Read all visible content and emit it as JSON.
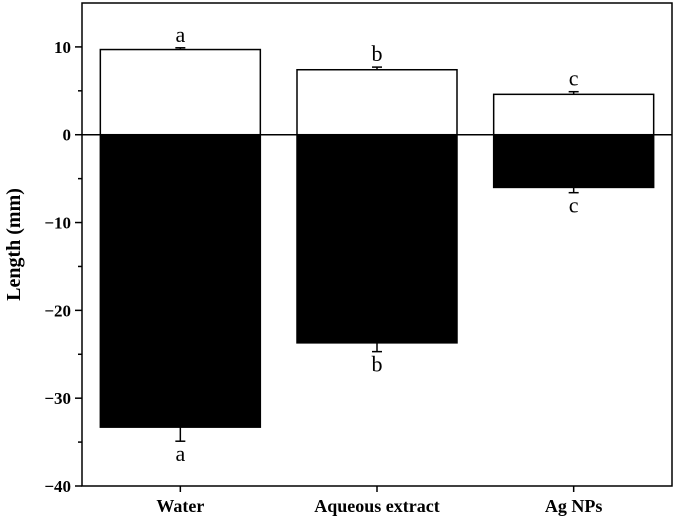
{
  "chart_data": {
    "type": "bar",
    "categories": [
      "Water",
      "Aqueous extract",
      "Ag NPs"
    ],
    "ylabel": "Length (mm)",
    "xlabel": "",
    "ylim": [
      -40,
      15
    ],
    "yticks": [
      10,
      0,
      -10,
      -20,
      -30,
      -40
    ],
    "ytick_labels": [
      "10",
      "0",
      "−10",
      "−20",
      "−30",
      "−40"
    ],
    "grid": false,
    "legend": "none",
    "series": [
      {
        "fill": "#ffffff",
        "stroke": "#000000",
        "values": [
          9.7,
          7.4,
          4.6
        ],
        "errors": [
          0.2,
          0.3,
          0.3
        ],
        "significance": [
          "a",
          "b",
          "c"
        ]
      },
      {
        "fill": "#000000",
        "stroke": "#000000",
        "values": [
          -33.3,
          -23.7,
          -6.0
        ],
        "errors": [
          1.6,
          1.0,
          0.6
        ],
        "significance": [
          "a",
          "b",
          "c"
        ]
      }
    ]
  }
}
